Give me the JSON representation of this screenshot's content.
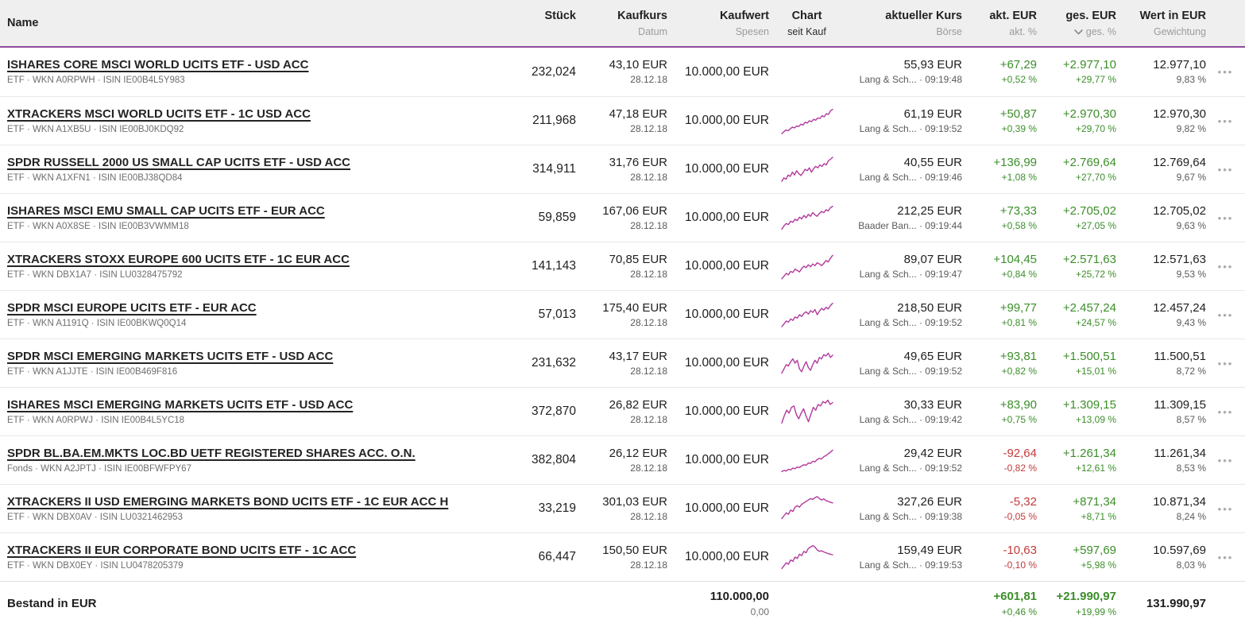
{
  "colors": {
    "accent": "#8e4a9e",
    "green": "#3c8e2a",
    "red": "#c13b3b",
    "spark": "#b23a9c"
  },
  "icons": {
    "row_menu": "•••",
    "sort_indicator": "chevron-down"
  },
  "header": {
    "name": {
      "label": "Name"
    },
    "stueck": {
      "label": "Stück"
    },
    "kaufkurs": {
      "label": "Kaufkurs",
      "sub": "Datum"
    },
    "kaufwert": {
      "label": "Kaufwert",
      "sub": "Spesen"
    },
    "chart": {
      "label": "Chart",
      "sub": "seit Kauf"
    },
    "kurs": {
      "label": "aktueller Kurs",
      "sub": "Börse"
    },
    "akt": {
      "label": "akt. EUR",
      "sub": "akt. %"
    },
    "ges": {
      "label": "ges. EUR",
      "sub": "ges. %"
    },
    "wert": {
      "label": "Wert in EUR",
      "sub": "Gewichtung"
    }
  },
  "rows": [
    {
      "name": "ISHARES CORE MSCI WORLD UCITS ETF - USD ACC",
      "meta": "ETF · WKN A0RPWH · ISIN IE00B4L5Y983",
      "stueck": "232,024",
      "kaufkurs": "43,10 EUR",
      "kauf_datum": "28.12.18",
      "kaufwert": "10.000,00 EUR",
      "kurs": "55,93 EUR",
      "boerse": "Lang & Sch... · 09:19:48",
      "akt_eur": "+67,29",
      "akt_pct": "+0,52 %",
      "ges_eur": "+2.977,10",
      "ges_pct": "+29,77 %",
      "wert": "12.977,10",
      "gewichtung": "9,83 %",
      "sparkline": null
    },
    {
      "name": "XTRACKERS MSCI WORLD UCITS ETF - 1C USD ACC",
      "meta": "ETF · WKN A1XB5U · ISIN IE00BJ0KDQ92",
      "stueck": "211,968",
      "kaufkurs": "47,18 EUR",
      "kauf_datum": "28.12.18",
      "kaufwert": "10.000,00 EUR",
      "kurs": "61,19 EUR",
      "boerse": "Lang & Sch... · 09:19:52",
      "akt_eur": "+50,87",
      "akt_pct": "+0,39 %",
      "ges_eur": "+2.970,30",
      "ges_pct": "+29,70 %",
      "wert": "12.970,30",
      "gewichtung": "9,82 %",
      "sparkline": [
        5,
        12,
        18,
        15,
        22,
        28,
        25,
        32,
        30,
        38,
        35,
        45,
        42,
        50,
        47,
        55,
        52,
        60,
        58,
        68,
        64,
        75,
        72,
        85,
        90
      ]
    },
    {
      "name": "SPDR RUSSELL 2000 US SMALL CAP UCITS ETF - USD ACC",
      "meta": "ETF · WKN A1XFN1 · ISIN IE00BJ38QD84",
      "stueck": "314,911",
      "kaufkurs": "31,76 EUR",
      "kauf_datum": "28.12.18",
      "kaufwert": "10.000,00 EUR",
      "kurs": "40,55 EUR",
      "boerse": "Lang & Sch... · 09:19:46",
      "akt_eur": "+136,99",
      "akt_pct": "+1,08 %",
      "ges_eur": "+2.769,64",
      "ges_pct": "+27,70 %",
      "wert": "12.769,64",
      "gewichtung": "9,67 %",
      "sparkline": [
        8,
        20,
        15,
        30,
        25,
        40,
        30,
        45,
        35,
        28,
        38,
        50,
        45,
        55,
        40,
        52,
        60,
        55,
        65,
        60,
        70,
        65,
        80,
        85,
        92
      ]
    },
    {
      "name": "ISHARES MSCI EMU SMALL CAP UCITS ETF - EUR ACC",
      "meta": "ETF · WKN A0X8SE · ISIN IE00B3VWMM18",
      "stueck": "59,859",
      "kaufkurs": "167,06 EUR",
      "kauf_datum": "28.12.18",
      "kaufwert": "10.000,00 EUR",
      "kurs": "212,25 EUR",
      "boerse": "Baader Ban... · 09:19:44",
      "akt_eur": "+73,33",
      "akt_pct": "+0,58 %",
      "ges_eur": "+2.705,02",
      "ges_pct": "+27,05 %",
      "wert": "12.705,02",
      "gewichtung": "9,63 %",
      "sparkline": [
        10,
        22,
        30,
        26,
        38,
        34,
        45,
        40,
        52,
        46,
        58,
        50,
        62,
        55,
        68,
        60,
        55,
        65,
        72,
        68,
        78,
        74,
        85,
        90
      ]
    },
    {
      "name": "XTRACKERS STOXX EUROPE 600 UCITS ETF - 1C EUR ACC",
      "meta": "ETF · WKN DBX1A7 · ISIN LU0328475792",
      "stueck": "141,143",
      "kaufkurs": "70,85 EUR",
      "kauf_datum": "28.12.18",
      "kaufwert": "10.000,00 EUR",
      "kurs": "89,07 EUR",
      "boerse": "Lang & Sch... · 09:19:47",
      "akt_eur": "+104,45",
      "akt_pct": "+0,84 %",
      "ges_eur": "+2.571,63",
      "ges_pct": "+25,72 %",
      "wert": "12.571,63",
      "gewichtung": "9,53 %",
      "sparkline": [
        6,
        15,
        25,
        20,
        32,
        28,
        40,
        35,
        30,
        42,
        50,
        45,
        55,
        48,
        58,
        52,
        62,
        58,
        52,
        60,
        70,
        65,
        78,
        88
      ]
    },
    {
      "name": "SPDR MSCI EUROPE UCITS ETF - EUR ACC",
      "meta": "ETF · WKN A1191Q · ISIN IE00BKWQ0Q14",
      "stueck": "57,013",
      "kaufkurs": "175,40 EUR",
      "kauf_datum": "28.12.18",
      "kaufwert": "10.000,00 EUR",
      "kurs": "218,50 EUR",
      "boerse": "Lang & Sch... · 09:19:52",
      "akt_eur": "+99,77",
      "akt_pct": "+0,81 %",
      "ges_eur": "+2.457,24",
      "ges_pct": "+24,57 %",
      "wert": "12.457,24",
      "gewichtung": "9,43 %",
      "sparkline": [
        8,
        18,
        28,
        24,
        35,
        30,
        42,
        38,
        50,
        44,
        55,
        60,
        52,
        64,
        58,
        68,
        50,
        62,
        72,
        66,
        76,
        70,
        82,
        90
      ]
    },
    {
      "name": "SPDR MSCI EMERGING MARKETS UCITS ETF - USD ACC",
      "meta": "ETF · WKN A1JJTE · ISIN IE00B469F816",
      "stueck": "231,632",
      "kaufkurs": "43,17 EUR",
      "kauf_datum": "28.12.18",
      "kaufwert": "10.000,00 EUR",
      "kurs": "49,65 EUR",
      "boerse": "Lang & Sch... · 09:19:52",
      "akt_eur": "+93,81",
      "akt_pct": "+0,82 %",
      "ges_eur": "+1.500,51",
      "ges_pct": "+15,01 %",
      "wert": "11.500,51",
      "gewichtung": "8,72 %",
      "sparkline": [
        15,
        30,
        45,
        40,
        55,
        65,
        50,
        60,
        30,
        20,
        40,
        55,
        35,
        25,
        45,
        60,
        50,
        70,
        65,
        80,
        75,
        85,
        70,
        78
      ]
    },
    {
      "name": "ISHARES MSCI EMERGING MARKETS UCITS ETF - USD ACC",
      "meta": "ETF · WKN A0RPWJ · ISIN IE00B4L5YC18",
      "stueck": "372,870",
      "kaufkurs": "26,82 EUR",
      "kauf_datum": "28.12.18",
      "kaufwert": "10.000,00 EUR",
      "kurs": "30,33 EUR",
      "boerse": "Lang & Sch... · 09:19:42",
      "akt_eur": "+83,90",
      "akt_pct": "+0,75 %",
      "ges_eur": "+1.309,15",
      "ges_pct": "+13,09 %",
      "wert": "11.309,15",
      "gewichtung": "8,57 %",
      "sparkline": [
        10,
        35,
        55,
        45,
        65,
        70,
        40,
        25,
        45,
        60,
        35,
        15,
        40,
        65,
        55,
        75,
        70,
        85,
        80,
        90,
        75,
        82
      ]
    },
    {
      "name": "SPDR BL.BA.EM.MKTS LOC.BD UETF REGISTERED SHARES ACC. O.N.",
      "meta": "Fonds · WKN A2JPTJ · ISIN IE00BFWFPY67",
      "stueck": "382,804",
      "kaufkurs": "26,12 EUR",
      "kauf_datum": "28.12.18",
      "kaufwert": "10.000,00 EUR",
      "kurs": "29,42 EUR",
      "boerse": "Lang & Sch... · 09:19:52",
      "akt_eur": "-92,64",
      "akt_pct": "-0,82 %",
      "ges_eur": "+1.261,34",
      "ges_pct": "+12,61 %",
      "wert": "11.261,34",
      "gewichtung": "8,53 %",
      "sparkline": [
        10,
        14,
        12,
        18,
        16,
        22,
        20,
        26,
        24,
        30,
        34,
        32,
        40,
        38,
        46,
        44,
        52,
        56,
        54,
        62,
        66,
        72,
        78,
        85
      ]
    },
    {
      "name": "XTRACKERS II USD EMERGING MARKETS BOND UCITS ETF - 1C EUR ACC H",
      "meta": "ETF · WKN DBX0AV · ISIN LU0321462953",
      "stueck": "33,219",
      "kaufkurs": "301,03 EUR",
      "kauf_datum": "28.12.18",
      "kaufwert": "10.000,00 EUR",
      "kurs": "327,26 EUR",
      "boerse": "Lang & Sch... · 09:19:38",
      "akt_eur": "-5,32",
      "akt_pct": "-0,05 %",
      "ges_eur": "+871,34",
      "ges_pct": "+8,71 %",
      "wert": "10.871,34",
      "gewichtung": "8,24 %",
      "sparkline": [
        15,
        25,
        35,
        30,
        45,
        40,
        55,
        60,
        55,
        65,
        70,
        75,
        80,
        85,
        82,
        88,
        92,
        85,
        80,
        84,
        78,
        75,
        72,
        70
      ]
    },
    {
      "name": "XTRACKERS II EUR CORPORATE BOND UCITS ETF - 1C ACC",
      "meta": "ETF · WKN DBX0EY · ISIN LU0478205379",
      "stueck": "66,447",
      "kaufkurs": "150,50 EUR",
      "kauf_datum": "28.12.18",
      "kaufwert": "10.000,00 EUR",
      "kurs": "159,49 EUR",
      "boerse": "Lang & Sch... · 09:19:53",
      "akt_eur": "-10,63",
      "akt_pct": "-0,10 %",
      "ges_eur": "+597,69",
      "ges_pct": "+5,98 %",
      "wert": "10.597,69",
      "gewichtung": "8,03 %",
      "sparkline": [
        10,
        20,
        30,
        25,
        40,
        35,
        50,
        45,
        60,
        55,
        70,
        65,
        80,
        85,
        90,
        85,
        75,
        70,
        72,
        68,
        65,
        62,
        60,
        58
      ]
    }
  ],
  "footer": {
    "label": "Bestand in EUR",
    "kaufwert": "110.000,00",
    "spesen": "0,00",
    "akt_eur": "+601,81",
    "akt_pct": "+0,46 %",
    "ges_eur": "+21.990,97",
    "ges_pct": "+19,99 %",
    "wert": "131.990,97"
  }
}
